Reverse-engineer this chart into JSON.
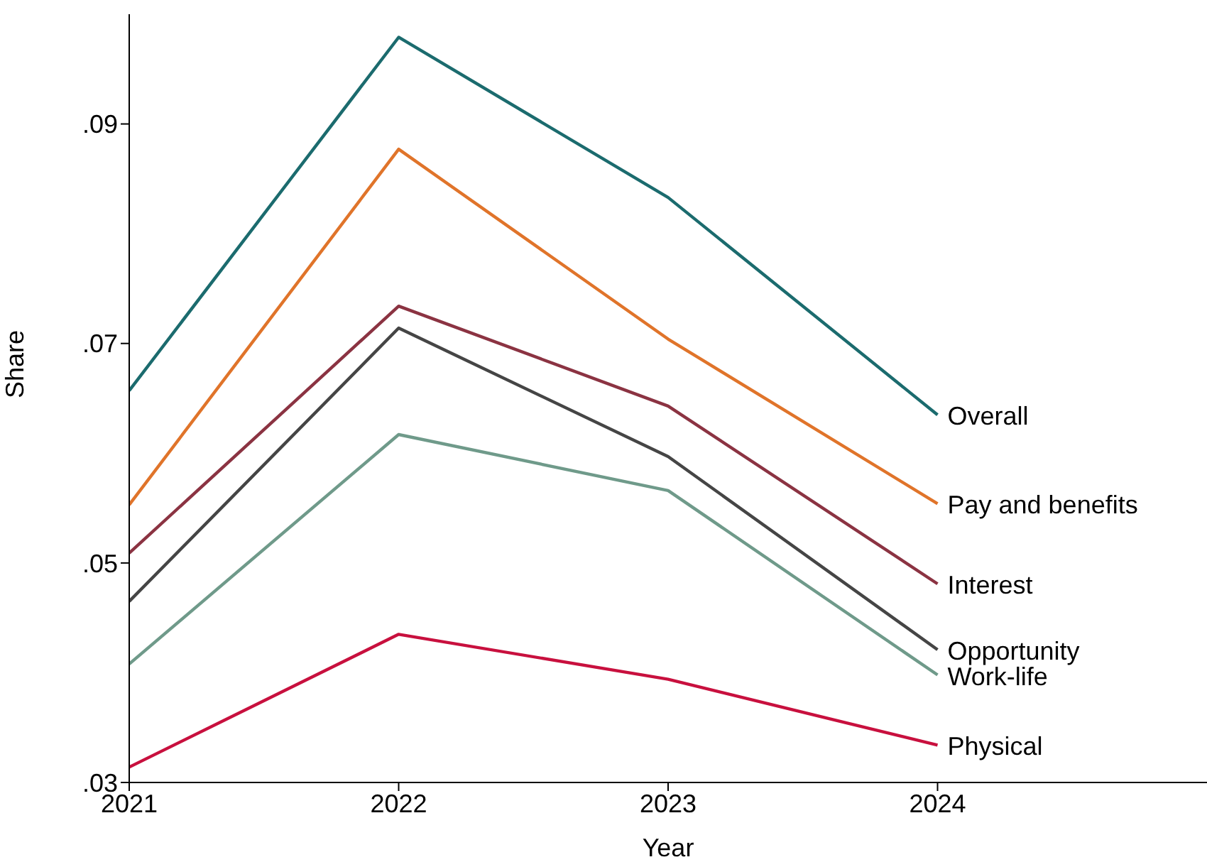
{
  "chart_data": {
    "type": "line",
    "xlabel": "Year",
    "ylabel": "Share",
    "x": [
      2021,
      2022,
      2023,
      2024
    ],
    "xlim": [
      2021,
      2025
    ],
    "xticks": [
      2021,
      2022,
      2023,
      2024
    ],
    "ylim": [
      0.03,
      0.1
    ],
    "yticks": [
      {
        "value": 0.03,
        "label": ".03"
      },
      {
        "value": 0.05,
        "label": ".05"
      },
      {
        "value": 0.07,
        "label": ".07"
      },
      {
        "value": 0.09,
        "label": ".09"
      }
    ],
    "marker": "none",
    "line_style": "solid",
    "series": [
      {
        "name": "Overall",
        "color": "#1b6b6e",
        "values": [
          0.0657,
          0.0979,
          0.0833,
          0.0635
        ]
      },
      {
        "name": "Pay and benefits",
        "color": "#e0742a",
        "values": [
          0.0553,
          0.0877,
          0.0704,
          0.0554
        ]
      },
      {
        "name": "Interest",
        "color": "#8b3342",
        "values": [
          0.0509,
          0.0734,
          0.0643,
          0.0481
        ]
      },
      {
        "name": "Opportunity",
        "color": "#454545",
        "values": [
          0.0465,
          0.0714,
          0.0597,
          0.0421
        ]
      },
      {
        "name": "Work-life",
        "color": "#6f9a8a",
        "values": [
          0.0408,
          0.0617,
          0.0566,
          0.0398
        ]
      },
      {
        "name": "Physical",
        "color": "#c8103e",
        "values": [
          0.0314,
          0.0435,
          0.0394,
          0.0334
        ]
      }
    ]
  }
}
